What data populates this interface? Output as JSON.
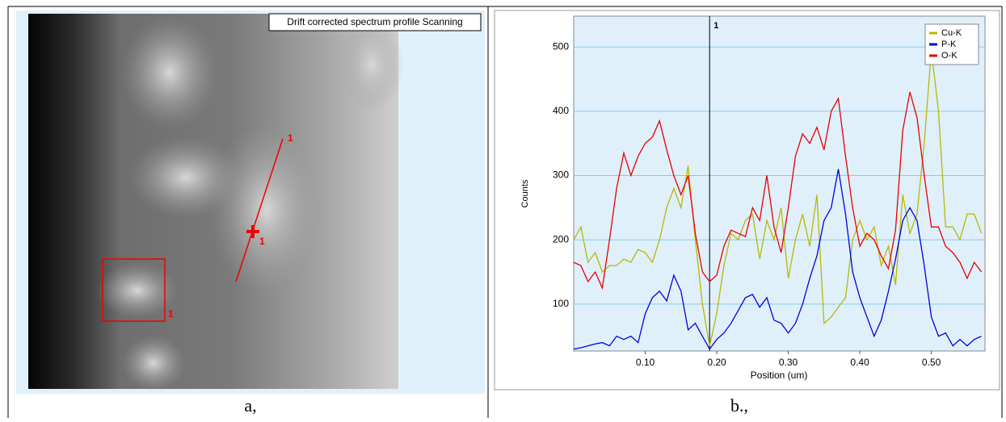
{
  "panel_a": {
    "label": "Drift corrected spectrum profile Scanning",
    "markers": [
      "1",
      "1",
      "1"
    ],
    "caption": "a,"
  },
  "panel_b_caption": "b.,",
  "chart_data": {
    "type": "line",
    "xlabel": "Position (um)",
    "ylabel": "Counts",
    "x": [
      0.0,
      0.01,
      0.02,
      0.03,
      0.04,
      0.05,
      0.06,
      0.07,
      0.08,
      0.09,
      0.1,
      0.11,
      0.12,
      0.13,
      0.14,
      0.15,
      0.16,
      0.17,
      0.18,
      0.19,
      0.2,
      0.21,
      0.22,
      0.23,
      0.24,
      0.25,
      0.26,
      0.27,
      0.28,
      0.29,
      0.3,
      0.31,
      0.32,
      0.33,
      0.34,
      0.35,
      0.36,
      0.37,
      0.38,
      0.39,
      0.4,
      0.41,
      0.42,
      0.43,
      0.44,
      0.45,
      0.46,
      0.47,
      0.48,
      0.49,
      0.5,
      0.51,
      0.52,
      0.53,
      0.54,
      0.55,
      0.56,
      0.57
    ],
    "series": [
      {
        "name": "Cu-K",
        "color": "#b8b800",
        "values": [
          200,
          220,
          165,
          180,
          150,
          160,
          160,
          170,
          165,
          185,
          180,
          165,
          200,
          250,
          280,
          250,
          315,
          200,
          100,
          35,
          85,
          160,
          210,
          200,
          230,
          240,
          170,
          230,
          200,
          250,
          140,
          200,
          240,
          190,
          270,
          70,
          80,
          95,
          110,
          200,
          230,
          200,
          220,
          160,
          190,
          130,
          270,
          210,
          240,
          350,
          495,
          400,
          220,
          220,
          200,
          240,
          240,
          210
        ]
      },
      {
        "name": "P-K",
        "color": "#0000e0",
        "values": [
          30,
          32,
          35,
          38,
          40,
          35,
          50,
          45,
          50,
          40,
          85,
          110,
          120,
          105,
          145,
          120,
          60,
          70,
          50,
          30,
          45,
          55,
          70,
          90,
          110,
          115,
          95,
          110,
          75,
          70,
          55,
          70,
          100,
          140,
          175,
          230,
          250,
          310,
          240,
          150,
          110,
          80,
          50,
          75,
          120,
          170,
          230,
          250,
          230,
          160,
          80,
          50,
          55,
          35,
          45,
          35,
          45,
          50
        ]
      },
      {
        "name": "O-K",
        "color": "#e80000",
        "values": [
          165,
          160,
          135,
          150,
          125,
          200,
          280,
          335,
          300,
          330,
          350,
          360,
          385,
          340,
          300,
          270,
          300,
          210,
          150,
          135,
          145,
          190,
          215,
          210,
          205,
          250,
          230,
          300,
          220,
          180,
          250,
          330,
          365,
          350,
          375,
          340,
          400,
          420,
          330,
          250,
          190,
          210,
          200,
          175,
          155,
          215,
          370,
          430,
          390,
          300,
          220,
          220,
          190,
          180,
          165,
          140,
          165,
          150
        ]
      }
    ],
    "xlim": [
      0,
      0.575
    ],
    "xticks": [
      {
        "value": 0.1,
        "label": "0.10"
      },
      {
        "value": 0.2,
        "label": "0.20"
      },
      {
        "value": 0.3,
        "label": "0.30"
      },
      {
        "value": 0.4,
        "label": "0.40"
      },
      {
        "value": 0.5,
        "label": "0.50"
      }
    ],
    "ylim": [
      27,
      548
    ],
    "yticks": [
      100,
      200,
      300,
      400,
      500
    ],
    "grid": true,
    "legend": "top-right",
    "annotations": [
      {
        "x": 0.19,
        "label": "1"
      }
    ]
  }
}
